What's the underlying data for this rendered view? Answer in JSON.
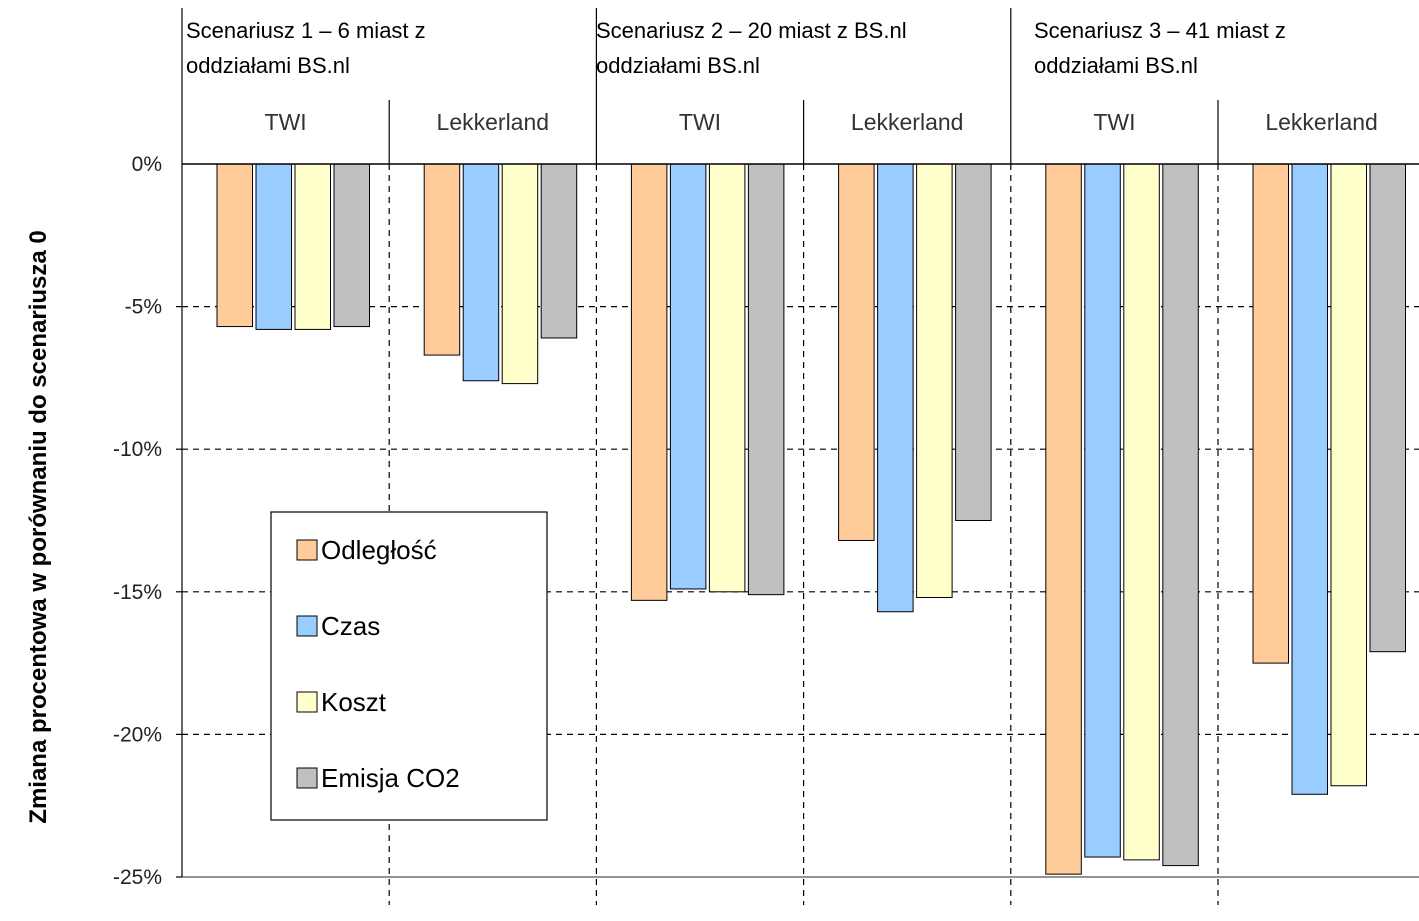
{
  "chart_data": {
    "type": "bar",
    "ylabel": "Zmiana procentowa w porównaniu do scenariusza 0",
    "y_tick_labels": [
      "0%",
      "-5%",
      "-10%",
      "-15%",
      "-20%",
      "-25%"
    ],
    "ylim": [
      -25,
      0
    ],
    "grid": true,
    "legend_position": "left, inside plot",
    "scenarios": [
      {
        "label": "Scenariusz 1 – 6 miast z oddziałami BS.nl",
        "lines": [
          "Scenariusz 1 – 6 miast z",
          "oddziałami BS.nl"
        ]
      },
      {
        "label": "Scenariusz 2 – 20 miast z BS.nl oddziałami BS.nl",
        "lines": [
          "Scenariusz 2 – 20 miast z BS.nl",
          "oddziałami BS.nl"
        ]
      },
      {
        "label": "Scenariusz 3 – 41 miast z oddziałami BS.nl",
        "lines": [
          "Scenariusz 3 – 41 miast z",
          "oddziałami BS.nl"
        ]
      }
    ],
    "categories": [
      "TWI",
      "Lekkerland",
      "TWI",
      "Lekkerland",
      "TWI",
      "Lekkerland"
    ],
    "series": [
      {
        "name": "Odległość",
        "color": "#FFCC99",
        "values": [
          -5.7,
          -6.7,
          -15.3,
          -13.2,
          -24.9,
          -17.5
        ]
      },
      {
        "name": "Czas",
        "color": "#99CCFF",
        "values": [
          -5.8,
          -7.6,
          -14.9,
          -15.7,
          -24.3,
          -22.1
        ]
      },
      {
        "name": "Koszt",
        "color": "#FFFFCC",
        "values": [
          -5.8,
          -7.7,
          -15.0,
          -15.2,
          -24.4,
          -21.8
        ]
      },
      {
        "name": "Emisja CO2",
        "color": "#C0C0C0",
        "values": [
          -5.7,
          -6.1,
          -15.1,
          -12.5,
          -24.6,
          -17.1
        ]
      }
    ]
  }
}
